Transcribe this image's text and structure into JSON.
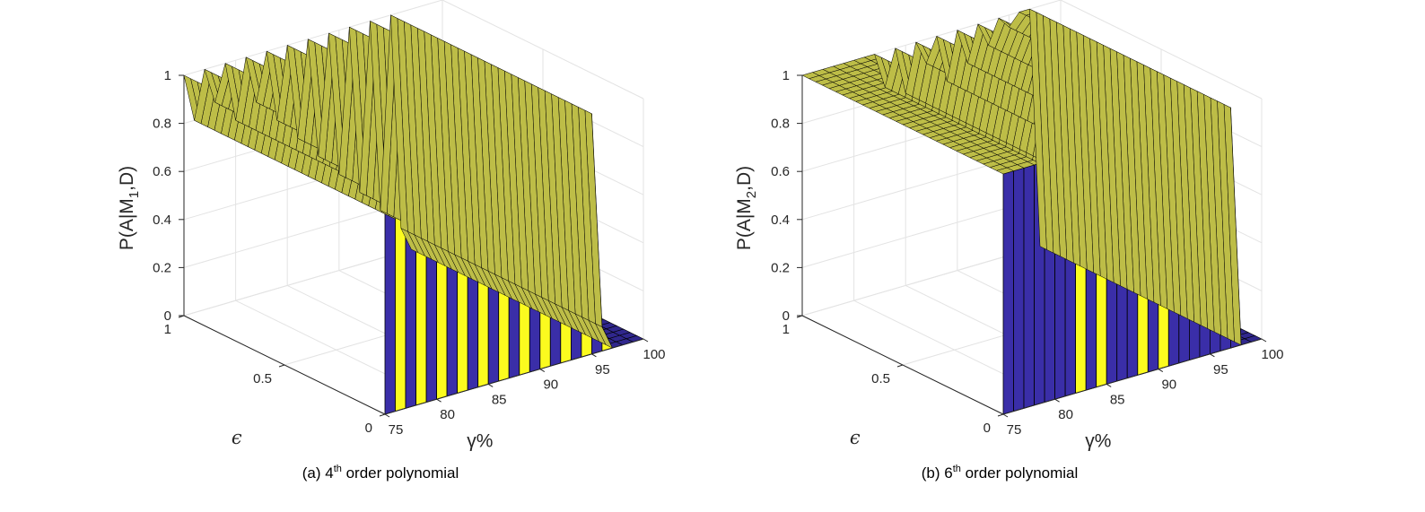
{
  "colors": {
    "low": "#3a2ea8",
    "high": "#fbfb1f",
    "edge": "#000000",
    "grid": "#e3e3e3",
    "axis": "#262626"
  },
  "chart_data": [
    {
      "type": "surface",
      "caption_prefix": "(a) 4",
      "caption_sup": "th",
      "caption_suffix": " order polynomial",
      "zlabel_pre": "P(A|M",
      "zlabel_sub": "1",
      "zlabel_post": ",D)",
      "xlabel": "γ%",
      "ylabel": "ϵ",
      "xlim": [
        75,
        100
      ],
      "ylim": [
        0,
        1
      ],
      "zlim": [
        0,
        1
      ],
      "xticks": [
        "75",
        "80",
        "85",
        "90",
        "95",
        "100"
      ],
      "yticks": [
        "0",
        "0.5",
        "1"
      ],
      "zticks": [
        "0",
        "0.2",
        "0.4",
        "0.6",
        "0.8",
        "1"
      ],
      "x": [
        75,
        76,
        77,
        78,
        79,
        80,
        81,
        82,
        83,
        84,
        85,
        86,
        87,
        88,
        89,
        90,
        91,
        92,
        93,
        94,
        95,
        96,
        97,
        98,
        99,
        100
      ],
      "z_levels": [
        1,
        0.8,
        1,
        0.85,
        1,
        0.75,
        1,
        0.8,
        1,
        0.7,
        1,
        0.6,
        1,
        0.5,
        1,
        0.4,
        1,
        0.3,
        1,
        0.2,
        1,
        0.1,
        0,
        0,
        0,
        0
      ],
      "transition_x": 76
    },
    {
      "type": "surface",
      "caption_prefix": "(b) 6",
      "caption_sup": "th",
      "caption_suffix": " order polynomial",
      "zlabel_pre": "P(A|M",
      "zlabel_sub": "2",
      "zlabel_post": ",D)",
      "xlabel": "γ%",
      "ylabel": "ϵ",
      "xlim": [
        75,
        100
      ],
      "ylim": [
        0,
        1
      ],
      "zlim": [
        0,
        1
      ],
      "xticks": [
        "75",
        "80",
        "85",
        "90",
        "95",
        "100"
      ],
      "yticks": [
        "0",
        "0.5",
        "1"
      ],
      "zticks": [
        "0",
        "0.2",
        "0.4",
        "0.6",
        "0.8",
        "1"
      ],
      "x": [
        75,
        76,
        77,
        78,
        79,
        80,
        81,
        82,
        83,
        84,
        85,
        86,
        87,
        88,
        89,
        90,
        91,
        92,
        93,
        94,
        95,
        96,
        97,
        98,
        99,
        100
      ],
      "z_levels": [
        1,
        1,
        1,
        1,
        1,
        1,
        1,
        1,
        0.85,
        1,
        0.8,
        1,
        0.9,
        1,
        0.8,
        1,
        0.85,
        1,
        0.9,
        1,
        0.95,
        1,
        1,
        0,
        0,
        0
      ],
      "transition_x": 100
    }
  ]
}
